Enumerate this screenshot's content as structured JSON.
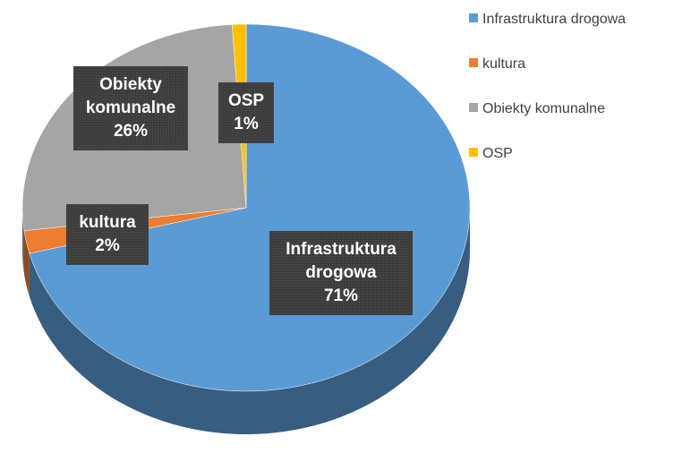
{
  "chart_data": {
    "type": "pie",
    "categories": [
      "Infrastruktura drogowa",
      "kultura",
      "Obiekty komunalne",
      "OSP"
    ],
    "values": [
      71,
      2,
      26,
      1
    ],
    "value_labels": [
      "71%",
      "2%",
      "26%",
      "1%"
    ],
    "colors": [
      "#5b9bd5",
      "#ed7d31",
      "#a5a5a5",
      "#ffc000"
    ],
    "legend": "right"
  }
}
